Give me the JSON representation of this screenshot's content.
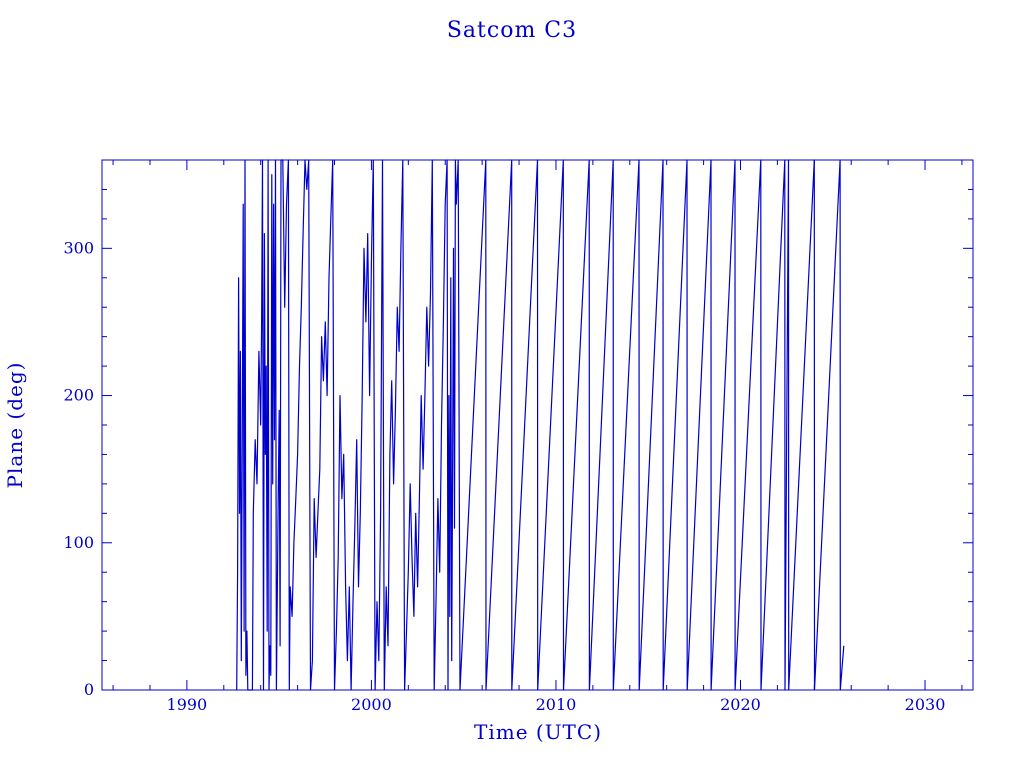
{
  "chart_data": {
    "type": "line",
    "title": "Satcom C3",
    "xlabel": "Time (UTC)",
    "ylabel": "Plane (deg)",
    "xlim": [
      1985.4,
      2032.6
    ],
    "ylim": [
      0,
      360
    ],
    "xticks": [
      1990,
      2000,
      2010,
      2020,
      2030
    ],
    "yticks": [
      0,
      100,
      200,
      300
    ],
    "x_minor_step": 2,
    "y_minor_step": 20,
    "grid": false,
    "legend": "none",
    "color": "#0000cc",
    "series": [
      {
        "note_style": "wrapped_angle",
        "points": [
          [
            1992.7,
            0
          ],
          [
            1992.75,
            80
          ],
          [
            1992.8,
            280
          ],
          [
            1992.85,
            120
          ],
          [
            1992.9,
            230
          ],
          [
            1992.95,
            20
          ],
          [
            1993.0,
            160
          ],
          [
            1993.05,
            330
          ],
          [
            1993.1,
            40
          ],
          [
            1993.15,
            360
          ],
          [
            1993.2,
            10
          ],
          [
            1993.25,
            40
          ],
          [
            1993.3,
            0
          ],
          [
            1993.55,
            0
          ],
          [
            1993.6,
            120
          ],
          [
            1993.7,
            170
          ],
          [
            1993.8,
            140
          ],
          [
            1993.9,
            230
          ],
          [
            1994.0,
            180
          ],
          [
            1994.05,
            250
          ],
          [
            1994.1,
            360
          ],
          [
            1994.15,
            0
          ],
          [
            1994.2,
            310
          ],
          [
            1994.25,
            160
          ],
          [
            1994.3,
            220
          ],
          [
            1994.35,
            40
          ],
          [
            1994.4,
            360
          ],
          [
            1994.45,
            0
          ],
          [
            1994.5,
            30
          ],
          [
            1994.55,
            10
          ],
          [
            1994.6,
            350
          ],
          [
            1994.65,
            140
          ],
          [
            1994.7,
            330
          ],
          [
            1994.75,
            170
          ],
          [
            1994.8,
            360
          ],
          [
            1994.85,
            0
          ],
          [
            1994.95,
            130
          ],
          [
            1995.0,
            190
          ],
          [
            1995.05,
            30
          ],
          [
            1995.1,
            360
          ],
          [
            1995.2,
            360
          ],
          [
            1995.3,
            260
          ],
          [
            1995.4,
            330
          ],
          [
            1995.5,
            360
          ],
          [
            1995.55,
            0
          ],
          [
            1995.6,
            70
          ],
          [
            1995.7,
            50
          ],
          [
            1995.8,
            100
          ],
          [
            1995.9,
            130
          ],
          [
            1996.0,
            160
          ],
          [
            1996.1,
            220
          ],
          [
            1996.2,
            260
          ],
          [
            1996.3,
            310
          ],
          [
            1996.4,
            360
          ],
          [
            1996.5,
            340
          ],
          [
            1996.6,
            360
          ],
          [
            1996.7,
            0
          ],
          [
            1996.8,
            20
          ],
          [
            1996.9,
            130
          ],
          [
            1997.0,
            90
          ],
          [
            1997.1,
            120
          ],
          [
            1997.2,
            150
          ],
          [
            1997.3,
            240
          ],
          [
            1997.4,
            210
          ],
          [
            1997.5,
            250
          ],
          [
            1997.6,
            200
          ],
          [
            1997.7,
            280
          ],
          [
            1997.8,
            320
          ],
          [
            1997.9,
            360
          ],
          [
            1998.0,
            0
          ],
          [
            1998.1,
            40
          ],
          [
            1998.2,
            90
          ],
          [
            1998.3,
            200
          ],
          [
            1998.4,
            130
          ],
          [
            1998.5,
            160
          ],
          [
            1998.6,
            70
          ],
          [
            1998.7,
            20
          ],
          [
            1998.8,
            70
          ],
          [
            1998.9,
            0
          ],
          [
            1999.0,
            60
          ],
          [
            1999.1,
            110
          ],
          [
            1999.2,
            170
          ],
          [
            1999.3,
            70
          ],
          [
            1999.4,
            120
          ],
          [
            1999.5,
            200
          ],
          [
            1999.6,
            300
          ],
          [
            1999.7,
            250
          ],
          [
            1999.8,
            310
          ],
          [
            1999.9,
            200
          ],
          [
            2000.0,
            290
          ],
          [
            2000.1,
            360
          ],
          [
            2000.2,
            0
          ],
          [
            2000.3,
            60
          ],
          [
            2000.4,
            20
          ],
          [
            2000.5,
            120
          ],
          [
            2000.6,
            360
          ],
          [
            2000.7,
            0
          ],
          [
            2000.8,
            70
          ],
          [
            2000.9,
            30
          ],
          [
            2001.0,
            160
          ],
          [
            2001.1,
            210
          ],
          [
            2001.2,
            140
          ],
          [
            2001.3,
            190
          ],
          [
            2001.4,
            260
          ],
          [
            2001.5,
            230
          ],
          [
            2001.6,
            300
          ],
          [
            2001.7,
            360
          ],
          [
            2001.8,
            0
          ],
          [
            2001.9,
            40
          ],
          [
            2002.0,
            80
          ],
          [
            2002.1,
            140
          ],
          [
            2002.2,
            90
          ],
          [
            2002.3,
            50
          ],
          [
            2002.4,
            120
          ],
          [
            2002.5,
            70
          ],
          [
            2002.6,
            130
          ],
          [
            2002.7,
            200
          ],
          [
            2002.8,
            150
          ],
          [
            2002.9,
            200
          ],
          [
            2003.0,
            260
          ],
          [
            2003.1,
            220
          ],
          [
            2003.2,
            270
          ],
          [
            2003.3,
            360
          ],
          [
            2003.4,
            0
          ],
          [
            2003.5,
            60
          ],
          [
            2003.6,
            130
          ],
          [
            2003.7,
            80
          ],
          [
            2003.8,
            180
          ],
          [
            2003.9,
            250
          ],
          [
            2004.0,
            330
          ],
          [
            2004.1,
            360
          ],
          [
            2004.15,
            0
          ],
          [
            2004.2,
            200
          ],
          [
            2004.25,
            50
          ],
          [
            2004.3,
            280
          ],
          [
            2004.35,
            20
          ],
          [
            2004.4,
            150
          ],
          [
            2004.45,
            300
          ],
          [
            2004.5,
            110
          ],
          [
            2004.55,
            360
          ],
          [
            2004.6,
            330
          ],
          [
            2004.7,
            360
          ],
          [
            2004.8,
            0
          ],
          [
            2006.2,
            360
          ],
          [
            2006.21,
            0
          ],
          [
            2007.6,
            360
          ],
          [
            2007.61,
            0
          ],
          [
            2009.0,
            360
          ],
          [
            2009.01,
            0
          ],
          [
            2010.4,
            360
          ],
          [
            2010.41,
            0
          ],
          [
            2011.8,
            360
          ],
          [
            2011.81,
            0
          ],
          [
            2013.1,
            360
          ],
          [
            2013.11,
            0
          ],
          [
            2014.5,
            360
          ],
          [
            2014.51,
            0
          ],
          [
            2015.8,
            360
          ],
          [
            2015.81,
            0
          ],
          [
            2017.1,
            360
          ],
          [
            2017.11,
            0
          ],
          [
            2018.4,
            360
          ],
          [
            2018.41,
            0
          ],
          [
            2019.7,
            360
          ],
          [
            2019.71,
            0
          ],
          [
            2021.1,
            360
          ],
          [
            2021.11,
            0
          ],
          [
            2022.4,
            360
          ],
          [
            2022.41,
            0
          ],
          [
            2022.6,
            360
          ],
          [
            2022.61,
            0
          ],
          [
            2024.0,
            360
          ],
          [
            2024.01,
            0
          ],
          [
            2025.4,
            360
          ],
          [
            2025.41,
            0
          ],
          [
            2025.6,
            30
          ]
        ]
      }
    ]
  }
}
